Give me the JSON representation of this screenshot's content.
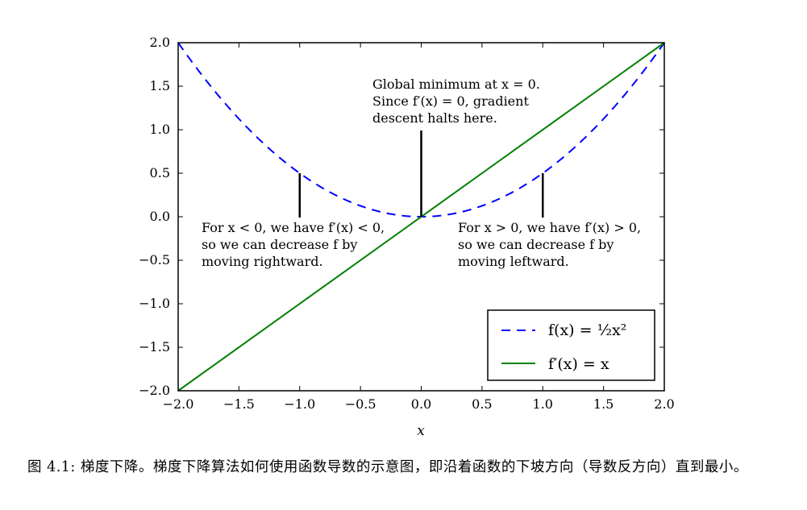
{
  "chart_data": {
    "type": "line",
    "xlabel": "x",
    "ylabel": "",
    "xlim": [
      -2.0,
      2.0
    ],
    "ylim": [
      -2.0,
      2.0
    ],
    "x_ticks": [
      "−2.0",
      "−1.5",
      "−1.0",
      "−0.5",
      "0.0",
      "0.5",
      "1.0",
      "1.5",
      "2.0"
    ],
    "y_ticks": [
      "2.0",
      "1.5",
      "1.0",
      "0.5",
      "0.0",
      "−0.5",
      "−1.0",
      "−1.5",
      "−2.0"
    ],
    "x_tick_values": [
      -2.0,
      -1.5,
      -1.0,
      -0.5,
      0.0,
      0.5,
      1.0,
      1.5,
      2.0
    ],
    "y_tick_values": [
      2.0,
      1.5,
      1.0,
      0.5,
      0.0,
      -0.5,
      -1.0,
      -1.5,
      -2.0
    ],
    "grid": false,
    "legend_position": "lower-right",
    "series": [
      {
        "name": "f(x) = ½x²",
        "style": "dashed",
        "color": "#0000ff",
        "function": "0.5*x^2",
        "x": [
          -2.0,
          -1.5,
          -1.0,
          -0.5,
          0.0,
          0.5,
          1.0,
          1.5,
          2.0
        ],
        "y": [
          2.0,
          1.125,
          0.5,
          0.125,
          0.0,
          0.125,
          0.5,
          1.125,
          2.0
        ]
      },
      {
        "name": "f′(x) = x",
        "style": "solid",
        "color": "#008000",
        "function": "x",
        "x": [
          -2.0,
          2.0
        ],
        "y": [
          -2.0,
          2.0
        ]
      }
    ],
    "annotations": [
      {
        "point": [
          0,
          0
        ],
        "lines": [
          "Global minimum at x = 0.",
          "Since f′(x) = 0, gradient",
          "descent halts here."
        ]
      },
      {
        "point": [
          -1,
          0.5
        ],
        "lines": [
          "For x < 0, we have f′(x) < 0,",
          "so we can decrease f by",
          "moving rightward."
        ]
      },
      {
        "point": [
          1,
          0.5
        ],
        "lines": [
          "For x > 0, we have f′(x) > 0,",
          "so we can decrease f by",
          "moving leftward."
        ]
      }
    ]
  },
  "caption": "图 4.1: 梯度下降。梯度下降算法如何使用函数导数的示意图，即沿着函数的下坡方向（导数反方向）直到最小。"
}
